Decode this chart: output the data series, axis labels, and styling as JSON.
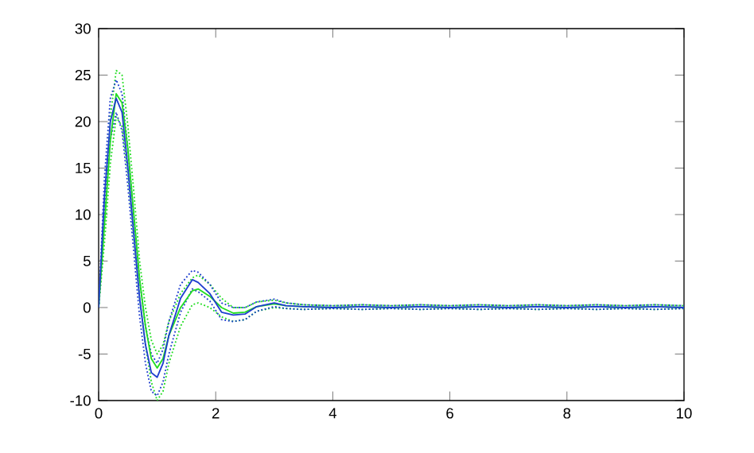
{
  "chart_data": {
    "type": "line",
    "grid": false,
    "marker": "none",
    "x": [
      0,
      0.1,
      0.2,
      0.3,
      0.4,
      0.5,
      0.6,
      0.7,
      0.8,
      0.9,
      1.0,
      1.1,
      1.2,
      1.4,
      1.6,
      1.7,
      1.9,
      2.1,
      2.3,
      2.5,
      2.7,
      3.0,
      3.2,
      3.5,
      4,
      4.5,
      5,
      5.5,
      6,
      6.5,
      7,
      7.5,
      8,
      8.5,
      9,
      9.5,
      10
    ],
    "xlim": [
      0,
      10
    ],
    "ylim": [
      -10,
      30
    ],
    "xticks": [
      0,
      2,
      4,
      6,
      8,
      10
    ],
    "yticks": [
      -10,
      -5,
      0,
      5,
      10,
      15,
      20,
      25,
      30
    ],
    "series": [
      {
        "color": "#22dd22",
        "line_style": "dotted",
        "values": [
          0,
          11,
          20.5,
          25.5,
          25,
          19.5,
          12.5,
          5,
          0,
          -3.5,
          -5,
          -4,
          -1.5,
          1.5,
          3.2,
          3.5,
          2.5,
          1,
          0,
          0,
          0.6,
          0.8,
          0.5,
          0.3,
          0.2,
          0.3,
          0.2,
          0.3,
          0.2,
          0.3,
          0.2,
          0.3,
          0.2,
          0.3,
          0.2,
          0.3,
          0.2
        ]
      },
      {
        "color": "#22dd22",
        "line_style": "dotted",
        "values": [
          0,
          7,
          15.5,
          20.5,
          19.5,
          14.5,
          7.5,
          1,
          -4,
          -8,
          -10,
          -9,
          -6,
          -2,
          0.3,
          0.5,
          0,
          -1,
          -1.5,
          -1.3,
          -0.4,
          0,
          -0.1,
          -0.2,
          -0.1,
          -0.2,
          -0.1,
          -0.2,
          -0.1,
          -0.2,
          -0.1,
          -0.2,
          -0.1,
          -0.2,
          -0.1,
          -0.2,
          -0.1
        ]
      },
      {
        "color": "#1f3fcf",
        "line_style": "dotted",
        "values": [
          0,
          14,
          22.5,
          24.5,
          23,
          17,
          10,
          3,
          -2,
          -5,
          -6,
          -4.5,
          -1.5,
          2.5,
          4,
          3.8,
          2.5,
          0.5,
          0,
          0,
          0.6,
          0.9,
          0.5,
          0.3,
          0.2,
          0.3,
          0.2,
          0.3,
          0.2,
          0.3,
          0.2,
          0.3,
          0.2,
          0.3,
          0.2,
          0.3,
          0.2
        ]
      },
      {
        "color": "#1f3fcf",
        "line_style": "dotted",
        "values": [
          0,
          10,
          18,
          21,
          19,
          13,
          6,
          -1,
          -6,
          -9,
          -9.5,
          -8,
          -5,
          -0.5,
          2,
          1.7,
          0.7,
          -1.3,
          -1.5,
          -1.3,
          -0.4,
          0.1,
          -0.1,
          -0.2,
          -0.1,
          -0.2,
          -0.1,
          -0.2,
          -0.1,
          -0.2,
          -0.1,
          -0.2,
          -0.1,
          -0.2,
          -0.1,
          -0.2,
          -0.1
        ]
      },
      {
        "color": "#22dd22",
        "line_style": "solid",
        "values": [
          0,
          9,
          18,
          23,
          22,
          17,
          10,
          3,
          -2,
          -5.5,
          -6.5,
          -5.5,
          -3,
          0,
          1.8,
          2,
          1.2,
          0,
          -0.6,
          -0.5,
          0.1,
          0.4,
          0.2,
          0.1,
          0,
          0.1,
          0,
          0.1,
          0,
          0.1,
          0,
          0.1,
          0,
          0.1,
          0,
          0.1,
          0
        ]
      },
      {
        "color": "#1f3fcf",
        "line_style": "solid",
        "values": [
          0,
          12,
          20,
          22.5,
          21,
          15,
          8,
          1,
          -4,
          -7,
          -7.5,
          -6,
          -3,
          1,
          3,
          2.7,
          1.5,
          -0.5,
          -0.8,
          -0.7,
          0.1,
          0.5,
          0.2,
          0.1,
          0,
          0.1,
          0,
          0.1,
          0,
          0.1,
          0,
          0.1,
          0,
          0.1,
          0,
          0.1,
          0
        ]
      }
    ]
  }
}
